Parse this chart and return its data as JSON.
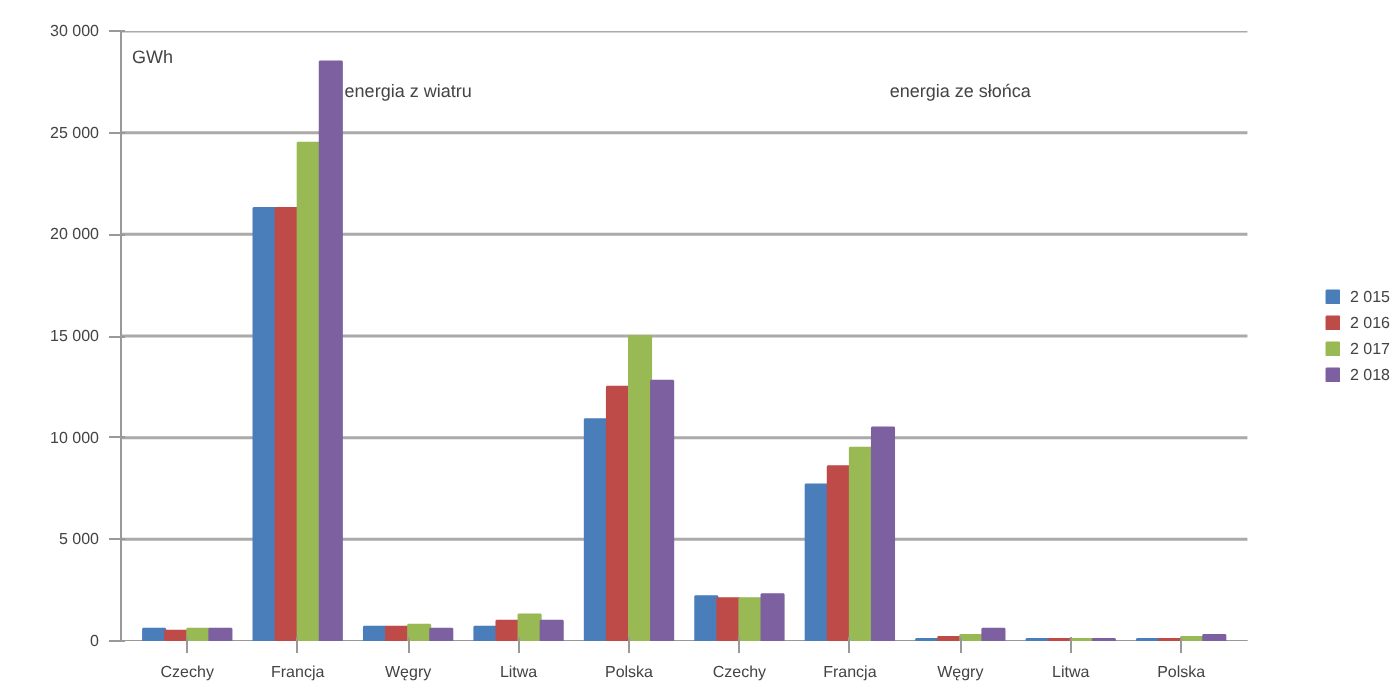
{
  "chart_data": {
    "type": "bar",
    "ylabel": "GWh",
    "categories": [
      "Czechy",
      "Francja",
      "Węgry",
      "Litwa",
      "Polska",
      "Czechy",
      "Francja",
      "Węgry",
      "Litwa",
      "Polska"
    ],
    "series": [
      {
        "name": "2 015",
        "color": "#4a7ebb",
        "values": [
          600,
          21300,
          700,
          700,
          10900,
          2200,
          7700,
          100,
          100,
          100
        ]
      },
      {
        "name": "2 016",
        "color": "#be4b48",
        "values": [
          500,
          21300,
          700,
          1000,
          12500,
          2100,
          8600,
          200,
          100,
          100
        ]
      },
      {
        "name": "2 017",
        "color": "#98b954",
        "values": [
          600,
          24500,
          800,
          1300,
          15000,
          2100,
          9500,
          300,
          100,
          200
        ]
      },
      {
        "name": "2 018",
        "color": "#7d60a0",
        "values": [
          600,
          28500,
          600,
          1000,
          12800,
          2300,
          10500,
          600,
          100,
          300
        ]
      }
    ],
    "annotations": [
      "energia z wiatru",
      "energia ze słońca"
    ],
    "ylim": [
      0,
      30000
    ],
    "yticks": [
      {
        "value": 0,
        "label": "0"
      },
      {
        "value": 5000,
        "label": "5 000"
      },
      {
        "value": 10000,
        "label": "10 000"
      },
      {
        "value": 15000,
        "label": "15 000"
      },
      {
        "value": 20000,
        "label": "20 000"
      },
      {
        "value": 25000,
        "label": "25 000"
      },
      {
        "value": 30000,
        "label": "30 000"
      }
    ],
    "grid": "y",
    "legend": "right"
  }
}
